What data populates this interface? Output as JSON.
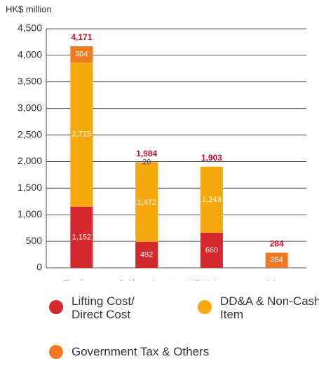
{
  "chart_data": {
    "type": "stacked_bar",
    "y_axis_label": "HK$ million",
    "categories": [
      "The Group",
      "Pakistan Assets",
      "MENA Assets",
      "Others"
    ],
    "series": [
      {
        "name": "Lifting Cost/ Direct Cost",
        "color": "#d3282c",
        "values": [
          1152,
          492,
          660,
          null
        ],
        "value_labels": [
          "1,152",
          "492",
          "660",
          null
        ]
      },
      {
        "name": "DD&A & Non-Cash Item",
        "color": "#f6a90f",
        "values": [
          2715,
          1472,
          1243,
          null
        ],
        "value_labels": [
          "2,715",
          "1,472",
          "1,243",
          null
        ]
      },
      {
        "name": "Government Tax & Others",
        "color": "#f07a22",
        "values": [
          304,
          20,
          null,
          284
        ],
        "value_labels": [
          "304",
          "20",
          null,
          "284"
        ]
      }
    ],
    "totals": {
      "color": "#c8102e",
      "values": [
        4171,
        1984,
        1903,
        284
      ],
      "value_labels": [
        "4,171",
        "1,984",
        "1,903",
        "284"
      ]
    },
    "ylim": [
      0,
      4500
    ],
    "yticks": [
      0,
      500,
      {
        "value": 1000,
        "label": "1,000"
      },
      {
        "value": 1500,
        "label": "1,500"
      },
      {
        "value": 2000,
        "label": "2,000"
      },
      {
        "value": 2500,
        "label": "2,500"
      },
      {
        "value": 3000,
        "label": "3,000"
      },
      {
        "value": 3500,
        "label": "3,500"
      },
      {
        "value": 4000,
        "label": "4,000"
      },
      {
        "value": 4500,
        "label": "4,500"
      }
    ],
    "grid": true
  }
}
